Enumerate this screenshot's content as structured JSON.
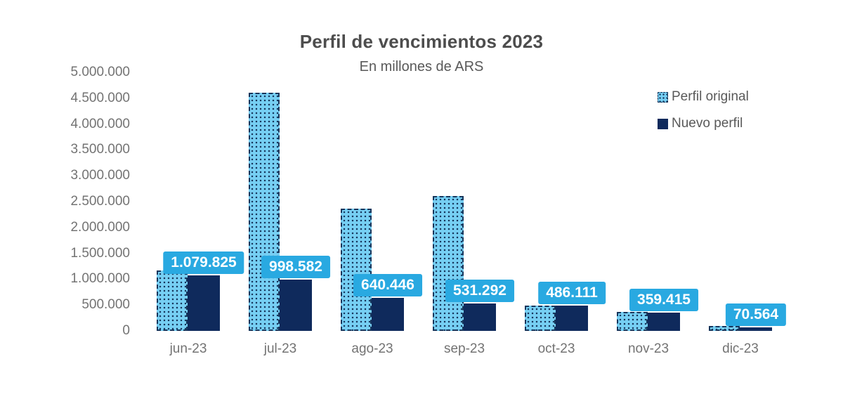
{
  "colors": {
    "background": "#ffffff",
    "original_fill": "#76cff3",
    "pattern_dots": "#17365c",
    "nuevo_fill": "#0f2a5c",
    "badge_background": "#29a9e1",
    "badge_text": "#ffffff",
    "title_text": "#4d4d4d",
    "subtitle_text": "#595959",
    "axis_text": "#737373",
    "legend_text": "#595959"
  },
  "chart_data": {
    "type": "bar",
    "title": "Perfil de vencimientos 2023",
    "subtitle": "En millones de ARS",
    "categories": [
      "jun-23",
      "jul-23",
      "ago-23",
      "sep-23",
      "oct-23",
      "nov-23",
      "dic-23"
    ],
    "series": [
      {
        "name": "Perfil original",
        "style": "light-blue-dotted-pattern-dashed-border",
        "values": [
          1170000,
          4600000,
          2360000,
          2610000,
          490000,
          370000,
          40000
        ]
      },
      {
        "name": "Nuevo perfil",
        "style": "solid-navy",
        "values": [
          1079825,
          998582,
          640446,
          531292,
          486111,
          359415,
          70564
        ]
      }
    ],
    "data_labels": {
      "series": "Nuevo perfil",
      "labels": [
        "1.079.825",
        "998.582",
        "640.446",
        "531.292",
        "486.111",
        "359.415",
        "70.564"
      ]
    },
    "y_ticks": [
      {
        "value": 5000000,
        "label": "5.000.000"
      },
      {
        "value": 4500000,
        "label": "4.500.000"
      },
      {
        "value": 4000000,
        "label": "4.000.000"
      },
      {
        "value": 3500000,
        "label": "3.500.000"
      },
      {
        "value": 3000000,
        "label": "3.000.000"
      },
      {
        "value": 2500000,
        "label": "2.500.000"
      },
      {
        "value": 2000000,
        "label": "2.000.000"
      },
      {
        "value": 1500000,
        "label": "1.500.000"
      },
      {
        "value": 1000000,
        "label": "1.000.000"
      },
      {
        "value": 500000,
        "label": "500.000"
      },
      {
        "value": 0,
        "label": "0"
      }
    ],
    "ylim": [
      0,
      5000000
    ],
    "grid": false,
    "legend_position": "top-right"
  }
}
